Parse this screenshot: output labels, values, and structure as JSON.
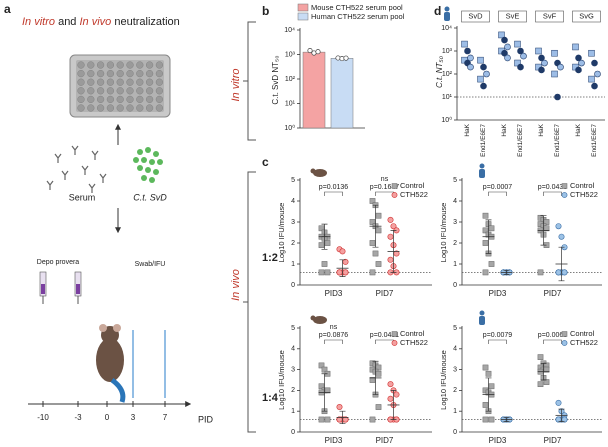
{
  "panel_labels": {
    "a": "a",
    "b": "b",
    "c": "c",
    "d": "d"
  },
  "panel_a": {
    "title": [
      "In vitro",
      " and ",
      "In vivo",
      " neutralization"
    ],
    "serum": "Serum",
    "strain": "C.t. SvD",
    "depo": "Depo provera",
    "swab": "Swab/IFU",
    "timeline": [
      -10,
      -3,
      0,
      3,
      7
    ],
    "axis_label": "PID"
  },
  "side_labels": {
    "in_vitro": "In vitro",
    "in_vivo": "In vivo",
    "dilution_1": "1:2",
    "dilution_2": "1:4"
  },
  "chart_data": [
    {
      "type": "bar_log",
      "ylabel": "C.t. SvD NT₅₀",
      "log_scale": true,
      "ylim": [
        1,
        10000
      ],
      "yticks": [
        {
          "value": 1,
          "label": "10⁰"
        },
        {
          "value": 10,
          "label": "10¹"
        },
        {
          "value": 100,
          "label": "10²"
        },
        {
          "value": 1000,
          "label": "10³"
        },
        {
          "value": 10000,
          "label": "10⁴"
        }
      ],
      "series": [
        {
          "name": "Mouse CTH522 serum pool",
          "color": "#f4a3a3",
          "value": 1250,
          "points": [
            1450,
            1150,
            1300
          ]
        },
        {
          "name": "Human CTH522 serum pool",
          "color": "#c8dcf4",
          "value": 700,
          "points": [
            720,
            680,
            710
          ]
        }
      ]
    },
    {
      "type": "strip_log",
      "ylabel": "C.t. NT₅₀",
      "log_scale": true,
      "ylim": [
        1,
        10000
      ],
      "yticks": [
        {
          "value": 1,
          "label": "10⁰"
        },
        {
          "value": 10,
          "label": "10¹"
        },
        {
          "value": 100,
          "label": "10²"
        },
        {
          "value": 1000,
          "label": "10³"
        },
        {
          "value": 10000,
          "label": "10⁴"
        }
      ],
      "ref_line": 10,
      "groups": [
        "SvD",
        "SvE",
        "SvF",
        "SvG"
      ],
      "categories": [
        "HaK",
        "End1/E6E7"
      ],
      "color": "#9dbde6",
      "edge_color": "#1f3a68",
      "values": [
        [
          [
            2000,
            1000,
            500,
            400,
            300,
            200
          ],
          [
            400,
            200,
            100,
            60,
            30
          ]
        ],
        [
          [
            5000,
            3000,
            1500,
            1000,
            800,
            500
          ],
          [
            2000,
            1000,
            600,
            300,
            200
          ]
        ],
        [
          [
            1000,
            500,
            300,
            200,
            150
          ],
          [
            800,
            300,
            200,
            100,
            10
          ]
        ],
        [
          [
            1500,
            500,
            300,
            200,
            150
          ],
          [
            800,
            300,
            100,
            60,
            30
          ]
        ]
      ]
    },
    {
      "type": "strip",
      "ylabel": "Log10 IFU/mouse",
      "categories": [
        "PID3",
        "PID7"
      ],
      "ylim": [
        0,
        5
      ],
      "yticks": [
        0,
        1,
        2,
        3,
        4,
        5
      ],
      "ref_line": 0.6,
      "legend": "upper right",
      "annotations": [
        [
          "p=0.0136"
        ],
        [
          "ns",
          "p=0.1647"
        ]
      ],
      "series": [
        {
          "name": "Control",
          "color": "#a6a6a6",
          "edge_color": "#666666",
          "marker": "square",
          "values": [
            [
              2.7,
              2.5,
              2.3,
              2.3,
              2.2,
              2.0,
              1.9,
              1.0,
              0.6,
              0.6
            ],
            [
              4.0,
              3.8,
              3.3,
              3.0,
              2.8,
              2.6,
              2.0,
              1.5,
              1.0,
              0.6
            ]
          ],
          "mean": [
            2.3,
            2.8
          ],
          "sd": [
            0.6,
            1.0
          ]
        },
        {
          "name": "CTH522",
          "color": "#f4a0a0",
          "edge_color": "#d03030",
          "marker": "circle",
          "values": [
            [
              1.7,
              1.6,
              1.1,
              0.6,
              0.6,
              0.6,
              0.6,
              0.6,
              0.6,
              0.6
            ],
            [
              3.1,
              2.8,
              2.6,
              2.3,
              1.9,
              1.5,
              1.2,
              0.9,
              0.6,
              0.6
            ]
          ],
          "mean": [
            0.8,
            1.6
          ],
          "sd": [
            0.4,
            1.0
          ]
        }
      ]
    },
    {
      "type": "strip",
      "ylabel": "Log10 IFU/mouse",
      "categories": [
        "PID3",
        "PID7"
      ],
      "ylim": [
        0,
        5
      ],
      "yticks": [
        0,
        1,
        2,
        3,
        4,
        5
      ],
      "ref_line": 0.6,
      "legend": "upper right",
      "annotations": [
        [
          "p=0.0007"
        ],
        [
          "p=0.0430"
        ]
      ],
      "series": [
        {
          "name": "Control",
          "color": "#a6a6a6",
          "edge_color": "#666666",
          "marker": "square",
          "values": [
            [
              3.3,
              2.9,
              2.7,
              2.6,
              2.4,
              2.3,
              2.0,
              1.5,
              1.0,
              0.6
            ],
            [
              3.2,
              3.1,
              3.0,
              2.9,
              2.8,
              2.7,
              2.6,
              2.4,
              1.9,
              0.6
            ]
          ],
          "mean": [
            2.3,
            2.6
          ],
          "sd": [
            0.8,
            0.7
          ]
        },
        {
          "name": "CTH522",
          "color": "#9cc2e6",
          "edge_color": "#3a6ea5",
          "marker": "circle",
          "values": [
            [
              0.6,
              0.6,
              0.6,
              0.6,
              0.6,
              0.6,
              0.6,
              0.6,
              0.6,
              0.6
            ],
            [
              2.8,
              2.3,
              1.8,
              0.6,
              0.6,
              0.6,
              0.6,
              0.6,
              0.6,
              0.6
            ]
          ],
          "mean": [
            0.6,
            1.0
          ],
          "sd": [
            0.1,
            0.8
          ]
        }
      ]
    },
    {
      "type": "strip",
      "ylabel": "Log10 IFU/mouse",
      "categories": [
        "PID3",
        "PID7"
      ],
      "ylim": [
        0,
        5
      ],
      "yticks": [
        0,
        1,
        2,
        3,
        4,
        5
      ],
      "ref_line": 0.6,
      "legend": "upper right",
      "annotations": [
        [
          "ns",
          "p=0.0876"
        ],
        [
          "p=0.0481"
        ]
      ],
      "series": [
        {
          "name": "Control",
          "color": "#a6a6a6",
          "edge_color": "#666666",
          "marker": "square",
          "values": [
            [
              3.2,
              3.0,
              2.8,
              2.2,
              2.0,
              2.0,
              1.9,
              1.0,
              0.6,
              0.6
            ],
            [
              3.3,
              3.2,
              3.1,
              3.0,
              2.9,
              2.8,
              2.5,
              1.8,
              1.2,
              0.6
            ]
          ],
          "mean": [
            1.9,
            2.6
          ],
          "sd": [
            0.9,
            0.8
          ]
        },
        {
          "name": "CTH522",
          "color": "#f4a0a0",
          "edge_color": "#d03030",
          "marker": "circle",
          "values": [
            [
              1.2,
              0.6,
              0.6,
              0.6,
              0.6,
              0.6,
              0.6,
              0.6,
              0.6,
              0.6
            ],
            [
              2.3,
              2.0,
              1.8,
              1.6,
              1.3,
              0.6,
              0.6,
              0.6,
              0.6,
              0.6
            ]
          ],
          "mean": [
            0.7,
            1.3
          ],
          "sd": [
            0.3,
            0.7
          ]
        }
      ]
    },
    {
      "type": "strip",
      "ylabel": "Log10 IFU/mouse",
      "categories": [
        "PID3",
        "PID7"
      ],
      "ylim": [
        0,
        5
      ],
      "yticks": [
        0,
        1,
        2,
        3,
        4,
        5
      ],
      "ref_line": 0.6,
      "legend": "upper right",
      "annotations": [
        [
          "p=0.0079"
        ],
        [
          "p=0.0065"
        ]
      ],
      "series": [
        {
          "name": "Control",
          "color": "#a6a6a6",
          "edge_color": "#666666",
          "marker": "square",
          "values": [
            [
              3.1,
              2.8,
              2.2,
              2.0,
              1.9,
              1.8,
              1.3,
              1.0,
              0.6,
              0.6
            ],
            [
              3.6,
              3.3,
              3.2,
              3.1,
              3.0,
              3.0,
              2.9,
              2.6,
              2.4,
              2.3
            ]
          ],
          "mean": [
            1.8,
            2.9
          ],
          "sd": [
            0.8,
            0.4
          ]
        },
        {
          "name": "CTH522",
          "color": "#9cc2e6",
          "edge_color": "#3a6ea5",
          "marker": "circle",
          "values": [
            [
              0.6,
              0.6,
              0.6,
              0.6,
              0.6,
              0.6,
              0.6,
              0.6,
              0.6,
              0.6
            ],
            [
              1.4,
              1.0,
              0.8,
              0.6,
              0.6,
              0.6,
              0.6,
              0.6,
              0.6,
              0.6
            ]
          ],
          "mean": [
            0.6,
            0.8
          ],
          "sd": [
            0.1,
            0.3
          ]
        }
      ]
    }
  ]
}
